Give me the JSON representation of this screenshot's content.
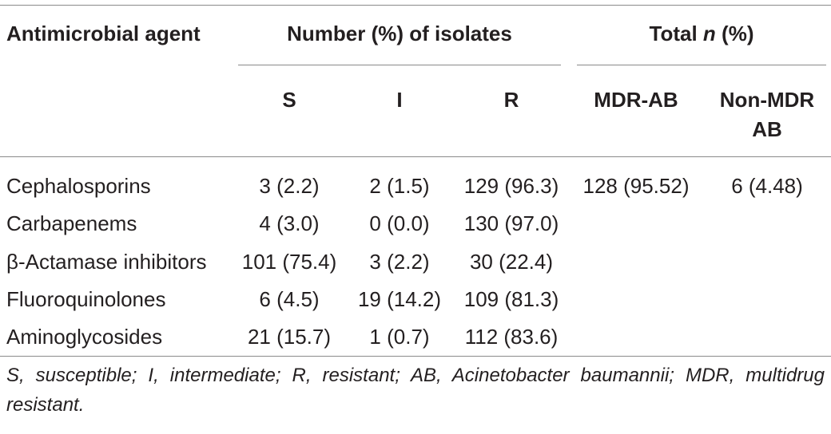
{
  "table": {
    "headers": {
      "agent": "Antimicrobial agent",
      "number": "Number (%) of isolates",
      "total_pre": "Total ",
      "total_n": "n",
      "total_post": " (%)",
      "s": "S",
      "i": "I",
      "r": "R",
      "mdr": "MDR-AB",
      "non_mdr_line1": "Non-MDR",
      "non_mdr_line2": "AB"
    },
    "rows": [
      {
        "agent": "Cephalosporins",
        "s": "3 (2.2)",
        "i": "2 (1.5)",
        "r": "129 (96.3)",
        "mdr": "128 (95.52)",
        "non_mdr": "6 (4.48)"
      },
      {
        "agent": "Carbapenems",
        "s": "4 (3.0)",
        "i": "0 (0.0)",
        "r": "130 (97.0)",
        "mdr": "",
        "non_mdr": ""
      },
      {
        "agent": "β-Actamase inhibitors",
        "s": "101 (75.4)",
        "i": "3 (2.2)",
        "r": "30 (22.4)",
        "mdr": "",
        "non_mdr": ""
      },
      {
        "agent": "Fluoroquinolones",
        "s": "6 (4.5)",
        "i": "19 (14.2)",
        "r": "109 (81.3)",
        "mdr": "",
        "non_mdr": ""
      },
      {
        "agent": "Aminoglycosides",
        "s": "21 (15.7)",
        "i": "1 (0.7)",
        "r": "112 (83.6)",
        "mdr": "",
        "non_mdr": ""
      }
    ],
    "footnote": "S, susceptible; I, intermediate; R, resistant; AB, Acinetobacter baumannii; MDR, multidrug resistant."
  }
}
